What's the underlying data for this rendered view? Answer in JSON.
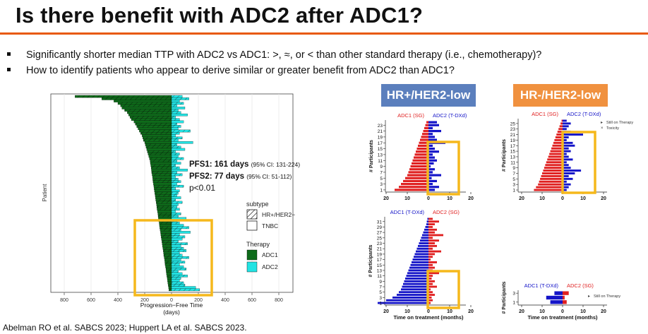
{
  "slide": {
    "title": "Is there benefit with ADC2 after ADC1?",
    "bullets": [
      "Significantly shorter median TTP with ADC2 vs ADC1: >, ≈, or < than other standard therapy (i.e., chemotherapy)?",
      "How to identify patients who appear to derive similar or greater benefit from ADC2 than ADC1?"
    ],
    "footer": "Abelman RO et al. SABCS 2023; Huppert LA et al. SABCS 2023.",
    "panel_headers": [
      "HR+/HER2-low",
      "HR-/HER2-low"
    ]
  },
  "colors": {
    "accent_rule": "#e8590c",
    "adc1_green": "#0e6b1a",
    "adc2_cyan": "#22e3e3",
    "highlight": "#f5b81c",
    "sg_red": "#e02020",
    "tdxd_blue": "#1414c8"
  },
  "chart_data": [
    {
      "type": "bar",
      "orientation": "horizontal-swimmer",
      "xlabel": "Progression−Free Time\n(days)",
      "ylabel": "Patient",
      "x_ticks": [
        "800",
        "600",
        "400",
        "200",
        "0",
        "200",
        "400",
        "600",
        "800"
      ],
      "xlim": [
        -900,
        900
      ],
      "annotations": [
        {
          "bold": "PFS1: 161 days",
          "small": "(95% CI: 131-224)"
        },
        {
          "bold": "PFS2: 77 days",
          "small": "(95% CI: 51-112)"
        },
        {
          "bold": "",
          "small": "p<0.01"
        }
      ],
      "legend": {
        "subtype_title": "subtype",
        "subtype": [
          "HR+/HER2−",
          "TNBC"
        ],
        "therapy_title": "Therapy",
        "therapy": [
          "ADC1",
          "ADC2"
        ]
      },
      "series": [
        {
          "name": "ADC1",
          "values": [
            720,
            520,
            430,
            400,
            380,
            370,
            350,
            330,
            320,
            310,
            300,
            280,
            270,
            260,
            250,
            240,
            230,
            220,
            215,
            210,
            200,
            195,
            190,
            185,
            180,
            175,
            170,
            165,
            160,
            158,
            155,
            152,
            150,
            148,
            145,
            142,
            140,
            138,
            135,
            132,
            130,
            128,
            125,
            122,
            120,
            118,
            115,
            112,
            110,
            108,
            105,
            102,
            100,
            98,
            95,
            92,
            90,
            88,
            85,
            82,
            80,
            78,
            75,
            72,
            70,
            68,
            65,
            62,
            60,
            58,
            55,
            52,
            50,
            48,
            45,
            42,
            40,
            38,
            35,
            32,
            30,
            28,
            25,
            22,
            20
          ]
        },
        {
          "name": "ADC2",
          "values": [
            80,
            130,
            60,
            90,
            40,
            100,
            50,
            70,
            120,
            30,
            60,
            90,
            40,
            70,
            50,
            140,
            60,
            30,
            80,
            50,
            160,
            40,
            70,
            100,
            30,
            60,
            50,
            90,
            40,
            70,
            30,
            60,
            120,
            40,
            80,
            30,
            50,
            70,
            40,
            90,
            30,
            60,
            50,
            40,
            70,
            30,
            80,
            50,
            40,
            60,
            30,
            70,
            50,
            110,
            40,
            60,
            90,
            130,
            70,
            140,
            60,
            100,
            80,
            50,
            120,
            70,
            90,
            110,
            60,
            80,
            130,
            70,
            100,
            60,
            90,
            110,
            50,
            80,
            120,
            70,
            60,
            90,
            100,
            180,
            210
          ]
        }
      ]
    },
    {
      "type": "bar",
      "orientation": "horizontal-swimmer",
      "title": "HR+/HER2-low",
      "legend_left": "ADC1 (SG)",
      "legend_right": "ADC2 (T-DXd)",
      "ylabel": "# Participants",
      "y_ticks": [
        "1",
        "3",
        "5",
        "7",
        "9",
        "11",
        "13",
        "15",
        "17",
        "19",
        "21",
        "23"
      ],
      "x_ticks": [
        "20",
        "10",
        "0",
        "10",
        "20"
      ],
      "series": [
        {
          "name": "ADC1 (SG)",
          "values": [
            16,
            14,
            13,
            12,
            11,
            10,
            9.5,
            9,
            8.5,
            8,
            7.5,
            7,
            6.5,
            6,
            5.5,
            5,
            4.5,
            4,
            3.5,
            3,
            2.5,
            2,
            1.5,
            1
          ]
        },
        {
          "name": "ADC2 (T-DXd)",
          "values": [
            3,
            5,
            2,
            4,
            1.5,
            6,
            2,
            3,
            1,
            2.5,
            4,
            3,
            2,
            5,
            3,
            2,
            8,
            4,
            3,
            2,
            6,
            2,
            5,
            4
          ]
        }
      ]
    },
    {
      "type": "bar",
      "orientation": "horizontal-swimmer",
      "title": "HR-/HER2-low",
      "legend_left": "ADC1 (SG)",
      "legend_right": "ADC2 (T-DXd)",
      "legend_items": [
        "Still on Therapy",
        "Toxicity"
      ],
      "ylabel": "# Participants",
      "y_ticks": [
        "1",
        "3",
        "5",
        "7",
        "9",
        "11",
        "13",
        "15",
        "17",
        "19",
        "21",
        "23",
        "25"
      ],
      "x_ticks": [
        "20",
        "10",
        "0",
        "10",
        "20"
      ],
      "series": [
        {
          "name": "ADC1 (SG)",
          "values": [
            14,
            13,
            12,
            11.5,
            11,
            10.5,
            10,
            9.5,
            9,
            8.5,
            8,
            7.5,
            7,
            6.5,
            6,
            5.5,
            5,
            4.5,
            4,
            3.5,
            3,
            2.5,
            2,
            1.5,
            1,
            0.5
          ]
        },
        {
          "name": "ADC2 (T-DXd)",
          "values": [
            2,
            3,
            4,
            2,
            5,
            3,
            6,
            9,
            4,
            3,
            2,
            5,
            3,
            2,
            4,
            3,
            6,
            5,
            2,
            3,
            10,
            4,
            2,
            3,
            4,
            2
          ]
        }
      ]
    },
    {
      "type": "bar",
      "orientation": "horizontal-swimmer",
      "legend_left": "ADC1 (T-DXd)",
      "legend_right": "ADC2 (SG)",
      "ylabel": "# Participants",
      "xlabel": "Time on treatment (months)",
      "y_ticks": [
        "1",
        "3",
        "5",
        "7",
        "9",
        "11",
        "13",
        "15",
        "17",
        "19",
        "21",
        "23",
        "25",
        "27",
        "29",
        "31"
      ],
      "x_ticks": [
        "20",
        "10",
        "0",
        "10",
        "20"
      ],
      "series": [
        {
          "name": "ADC1 (T-DXd)",
          "values": [
            24,
            20,
            17,
            15,
            14,
            13,
            12.5,
            12,
            11.5,
            11,
            10.5,
            10,
            9.5,
            9,
            8.5,
            8,
            7.5,
            7,
            6.5,
            6,
            5.5,
            5,
            4.5,
            4,
            3.5,
            3,
            2.5,
            2,
            1.5,
            1,
            0.8,
            0.5
          ]
        },
        {
          "name": "ADC2 (SG)",
          "values": [
            1,
            2,
            1.5,
            3,
            2,
            1,
            4,
            2,
            3,
            1.5,
            2,
            5,
            2,
            3,
            2,
            4,
            1,
            2,
            3,
            6,
            2,
            4,
            3,
            5,
            2,
            7,
            3,
            4,
            2,
            3,
            5,
            2
          ]
        }
      ]
    },
    {
      "type": "bar",
      "orientation": "horizontal-swimmer",
      "legend_left": "ADC1 (T-DXd)",
      "legend_right": "ADC2 (SG)",
      "legend_items": [
        "Still on Therapy"
      ],
      "ylabel": "# Participants",
      "xlabel": "Time on treatment (months)",
      "y_ticks": [
        "1",
        "3"
      ],
      "x_ticks": [
        "20",
        "10",
        "0",
        "10",
        "20"
      ],
      "series": [
        {
          "name": "ADC1 (T-DXd)",
          "values": [
            6,
            8,
            4
          ]
        },
        {
          "name": "ADC2 (SG)",
          "values": [
            2,
            1,
            3
          ]
        }
      ]
    }
  ]
}
